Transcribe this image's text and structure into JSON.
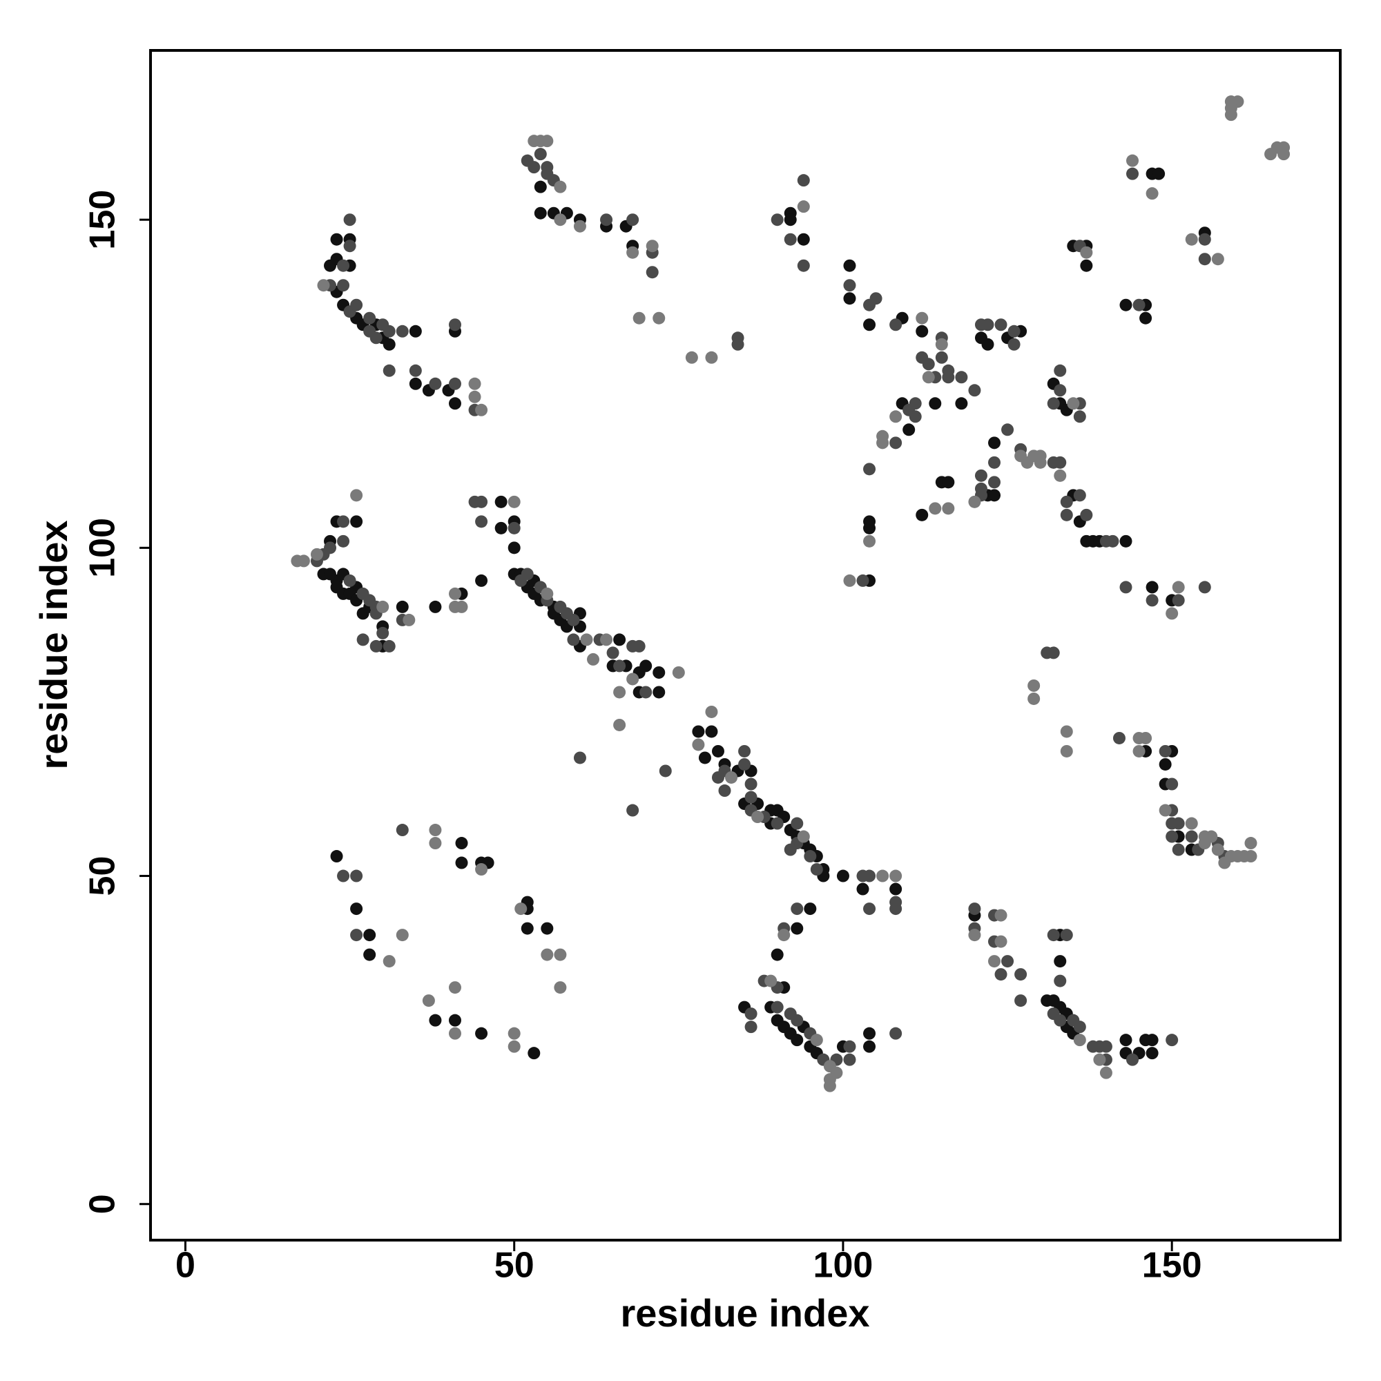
{
  "chart_data": {
    "type": "scatter",
    "xlabel": "residue index",
    "ylabel": "residue index",
    "xlim": [
      -5.3,
      175.6
    ],
    "ylim": [
      -5.5,
      175.8
    ],
    "xticks": [
      0,
      50,
      100,
      150
    ],
    "yticks": [
      0,
      50,
      100,
      150
    ],
    "grid": false,
    "series": [
      {
        "color": "#111111",
        "x": [
          23,
          22,
          23,
          25,
          23,
          25,
          24,
          26,
          27,
          29,
          30,
          31,
          35,
          35,
          37,
          40,
          41,
          41,
          54,
          54,
          56,
          58,
          60,
          64,
          67,
          68,
          92,
          92,
          94,
          101,
          101,
          104,
          109,
          112,
          114,
          118,
          109,
          110,
          112,
          115,
          116,
          122,
          123,
          123,
          143,
          137,
          138,
          139,
          136,
          135,
          121,
          122,
          125,
          127,
          132,
          133,
          134,
          135,
          137,
          137,
          143,
          146,
          146,
          147,
          148,
          155,
          104,
          104,
          104,
          22,
          23,
          26,
          21,
          22,
          23,
          24,
          23,
          24,
          26,
          25,
          26,
          27,
          28,
          30,
          30,
          33,
          38,
          42,
          45,
          48,
          48,
          50,
          50,
          50,
          51,
          52,
          53,
          53,
          54,
          56,
          56,
          57,
          58,
          60,
          60,
          60,
          66,
          65,
          67,
          69,
          70,
          69,
          72,
          72,
          78,
          79,
          80,
          81,
          82,
          84,
          86,
          85,
          87,
          89,
          89,
          90,
          91,
          92,
          93,
          94,
          95,
          96,
          97,
          97,
          100,
          103,
          108,
          95,
          93,
          90,
          91,
          85,
          89,
          90,
          91,
          92,
          93,
          94,
          95,
          96,
          100,
          104,
          104,
          23,
          26,
          28,
          28,
          42,
          42,
          45,
          46,
          38,
          41,
          45,
          52,
          52,
          52,
          55,
          53,
          120,
          133,
          133,
          131,
          132,
          133,
          134,
          134,
          135,
          143,
          143,
          145,
          146,
          147,
          147,
          146,
          150,
          149,
          149,
          151,
          153,
          147,
          150
        ],
        "values": [
          139,
          143,
          144,
          143,
          147,
          147,
          137,
          135,
          134,
          134,
          132,
          131,
          133,
          125,
          124,
          124,
          122,
          133,
          155,
          151,
          151,
          151,
          150,
          149,
          149,
          146,
          151,
          150,
          147,
          143,
          138,
          134,
          135,
          133,
          122,
          122,
          122,
          118,
          105,
          110,
          110,
          108,
          108,
          116,
          101,
          101,
          101,
          101,
          104,
          108,
          132,
          131,
          132,
          133,
          125,
          122,
          121,
          146,
          146,
          143,
          137,
          137,
          135,
          157,
          157,
          148,
          103,
          104,
          95,
          101,
          104,
          104,
          96,
          96,
          95,
          96,
          94,
          93,
          94,
          93,
          92,
          90,
          91,
          88,
          85,
          91,
          91,
          93,
          95,
          107,
          103,
          104,
          100,
          96,
          96,
          94,
          95,
          93,
          92,
          91,
          90,
          89,
          88,
          88,
          90,
          85,
          86,
          82,
          82,
          81,
          82,
          78,
          81,
          78,
          72,
          68,
          72,
          69,
          67,
          66,
          66,
          61,
          61,
          60,
          58,
          60,
          59,
          57,
          56,
          55,
          54,
          53,
          51,
          50,
          50,
          48,
          48,
          45,
          42,
          38,
          33,
          30,
          30,
          28,
          27,
          26,
          25,
          27,
          24,
          23,
          24,
          24,
          26,
          53,
          45,
          41,
          38,
          55,
          52,
          52,
          52,
          28,
          28,
          26,
          46,
          45,
          42,
          42,
          23,
          44,
          41,
          37,
          31,
          31,
          30,
          29,
          27,
          26,
          25,
          23,
          23,
          25,
          25,
          23,
          69,
          69,
          67,
          64,
          56,
          54,
          94,
          92
        ]
      },
      {
        "color": "#4a4a4a",
        "x": [
          22,
          24,
          24,
          25,
          25,
          25,
          26,
          28,
          28,
          29,
          30,
          31,
          31,
          33,
          35,
          38,
          41,
          41,
          44,
          52,
          53,
          54,
          55,
          55,
          56,
          64,
          68,
          71,
          71,
          84,
          84,
          90,
          92,
          94,
          94,
          101,
          104,
          105,
          108,
          115,
          112,
          113,
          115,
          116,
          114,
          116,
          118,
          120,
          110,
          111,
          111,
          108,
          104,
          121,
          121,
          121,
          123,
          123,
          125,
          127,
          132,
          133,
          134,
          136,
          134,
          137,
          140,
          141,
          121,
          122,
          126,
          126,
          124,
          133,
          133,
          132,
          136,
          136,
          136,
          145,
          144,
          155,
          155,
          103,
          20,
          21,
          22,
          24,
          24,
          25,
          27,
          28,
          29,
          29,
          30,
          29,
          31,
          27,
          33,
          44,
          45,
          45,
          50,
          52,
          51,
          54,
          55,
          57,
          58,
          59,
          59,
          63,
          65,
          66,
          68,
          69,
          70,
          68,
          60,
          73,
          81,
          82,
          82,
          85,
          85,
          86,
          86,
          86,
          88,
          90,
          93,
          95,
          96,
          93,
          92,
          103,
          104,
          104,
          108,
          108,
          93,
          91,
          88,
          90,
          86,
          86,
          90,
          92,
          93,
          95,
          97,
          99,
          101,
          101,
          108,
          24,
          26,
          26,
          33,
          120,
          120,
          123,
          123,
          124,
          125,
          127,
          127,
          132,
          134,
          133,
          132,
          133,
          135,
          136,
          138,
          139,
          140,
          140,
          144,
          150,
          131,
          132,
          142,
          149,
          150,
          150,
          150,
          151,
          150,
          151,
          153,
          154,
          157,
          158,
          143,
          147,
          151,
          155
        ],
        "values": [
          140,
          140,
          143,
          146,
          150,
          136,
          137,
          133,
          135,
          132,
          134,
          133,
          127,
          133,
          127,
          125,
          125,
          134,
          121,
          159,
          158,
          160,
          158,
          157,
          156,
          150,
          150,
          145,
          142,
          132,
          131,
          150,
          147,
          156,
          143,
          140,
          137,
          138,
          134,
          132,
          129,
          128,
          129,
          127,
          126,
          126,
          126,
          124,
          121,
          122,
          120,
          116,
          112,
          108,
          111,
          109,
          110,
          113,
          118,
          115,
          113,
          113,
          105,
          108,
          107,
          105,
          101,
          101,
          134,
          134,
          131,
          133,
          134,
          124,
          127,
          122,
          122,
          120,
          146,
          137,
          157,
          147,
          144,
          95,
          98,
          99,
          100,
          101,
          104,
          95,
          93,
          92,
          91,
          90,
          87,
          85,
          85,
          86,
          89,
          107,
          107,
          104,
          103,
          96,
          95,
          94,
          92,
          91,
          90,
          89,
          86,
          86,
          84,
          82,
          85,
          85,
          78,
          60,
          68,
          66,
          65,
          63,
          66,
          69,
          67,
          64,
          62,
          60,
          59,
          58,
          58,
          53,
          51,
          55,
          54,
          50,
          50,
          45,
          46,
          45,
          45,
          42,
          34,
          33,
          29,
          27,
          30,
          29,
          28,
          26,
          22,
          22,
          24,
          22,
          26,
          50,
          50,
          41,
          57,
          45,
          42,
          44,
          40,
          35,
          37,
          35,
          31,
          41,
          41,
          34,
          29,
          28,
          28,
          27,
          24,
          24,
          24,
          22,
          22,
          25,
          84,
          84,
          71,
          69,
          64,
          60,
          58,
          58,
          56,
          54,
          56,
          54,
          55,
          53,
          94,
          92,
          92,
          94
        ]
      },
      {
        "color": "#7a7a7a",
        "x": [
          21,
          45,
          44,
          44,
          53,
          54,
          55,
          57,
          57,
          60,
          68,
          71,
          69,
          72,
          77,
          80,
          94,
          112,
          115,
          113,
          106,
          106,
          108,
          114,
          116,
          120,
          127,
          128,
          129,
          130,
          130,
          133,
          135,
          137,
          144,
          147,
          153,
          157,
          159,
          160,
          159,
          159,
          165,
          166,
          167,
          167,
          104,
          101,
          17,
          18,
          20,
          26,
          30,
          34,
          41,
          41,
          42,
          50,
          55,
          61,
          62,
          64,
          68,
          75,
          66,
          66,
          78,
          80,
          83,
          87,
          94,
          106,
          108,
          91,
          89,
          96,
          98,
          98,
          98,
          99,
          31,
          33,
          38,
          38,
          45,
          37,
          41,
          41,
          50,
          50,
          51,
          55,
          57,
          57,
          120,
          124,
          124,
          123,
          136,
          139,
          140,
          129,
          129,
          134,
          134,
          145,
          146,
          145,
          149,
          153,
          155,
          156,
          155,
          157,
          158,
          159,
          160,
          161,
          162,
          162,
          150,
          151
        ],
        "values": [
          140,
          121,
          125,
          123,
          162,
          162,
          162,
          155,
          150,
          149,
          145,
          146,
          135,
          135,
          129,
          129,
          152,
          135,
          131,
          126,
          117,
          116,
          120,
          106,
          106,
          107,
          114,
          113,
          114,
          114,
          113,
          111,
          122,
          145,
          159,
          154,
          147,
          144,
          168,
          168,
          167,
          166,
          160,
          161,
          161,
          160,
          101,
          95,
          98,
          98,
          99,
          108,
          91,
          89,
          93,
          91,
          91,
          107,
          93,
          86,
          83,
          86,
          80,
          81,
          78,
          73,
          70,
          75,
          65,
          59,
          56,
          50,
          50,
          41,
          34,
          25,
          21,
          19,
          18,
          20,
          37,
          41,
          57,
          55,
          51,
          31,
          33,
          26,
          26,
          24,
          45,
          38,
          38,
          33,
          41,
          44,
          40,
          37,
          25,
          22,
          20,
          79,
          77,
          72,
          69,
          71,
          71,
          69,
          60,
          58,
          56,
          56,
          55,
          54,
          52,
          53,
          53,
          53,
          53,
          55,
          90,
          94
        ]
      }
    ]
  }
}
